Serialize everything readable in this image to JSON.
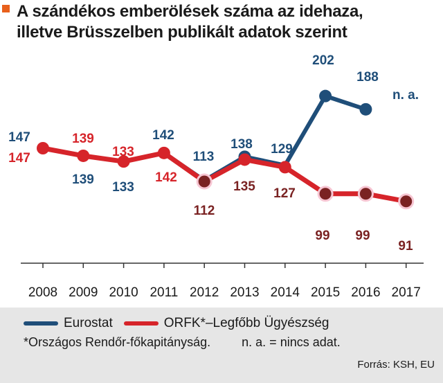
{
  "title": {
    "line1": "A szándékos emberölések száma az idehaza,",
    "line2": "illetve Brüsszelben publikált adatok szerint"
  },
  "colors": {
    "accent": "#e8601c",
    "eurostat": "#1f4e79",
    "orfk": "#d6242a",
    "orfk_dark": "#7a2222",
    "highlight": "#f7c6d3"
  },
  "chart_data": {
    "type": "line",
    "categories": [
      "2008",
      "2009",
      "2010",
      "2011",
      "2012",
      "2013",
      "2014",
      "2015",
      "2016",
      "2017"
    ],
    "series": [
      {
        "name": "Eurostat",
        "values": [
          147,
          139,
          133,
          142,
          113,
          138,
          129,
          202,
          188,
          null
        ]
      },
      {
        "name": "ORFK*–Legfőbb Ügyészség",
        "values": [
          147,
          139,
          133,
          142,
          112,
          135,
          127,
          99,
          99,
          91
        ]
      }
    ],
    "annotations": [
      {
        "category": "2017",
        "series": "Eurostat",
        "text": "n. a."
      }
    ],
    "title": "A szándékos emberölések száma az idehaza, illetve Brüsszelben publikált adatok szerint",
    "xlabel": "",
    "ylabel": "",
    "ylim": [
      80,
      215
    ],
    "grid": false,
    "legend": "bottom"
  },
  "legend": {
    "eurostat": "Eurostat",
    "orfk": "ORFK*–Legfőbb Ügyészség"
  },
  "notes": {
    "footnote": "*Országos Rendőr-főkapitányság.",
    "na": "n. a. = nincs adat."
  },
  "source": "Forrás: KSH, EU"
}
